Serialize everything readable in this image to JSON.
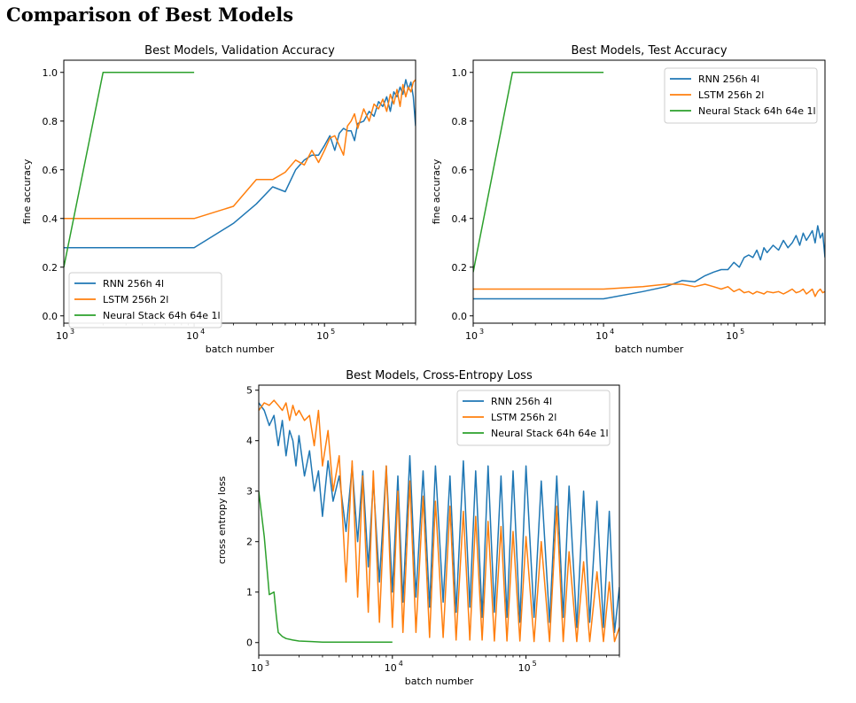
{
  "page": {
    "title": "Comparison of Best Models"
  },
  "colors": {
    "rnn": "#1f77b4",
    "lstm": "#ff7f0e",
    "stack": "#2ca02c"
  },
  "chart_data": [
    {
      "type": "line",
      "title": "Best Models, Validation Accuracy",
      "xlabel": "batch number",
      "ylabel": "fine accuracy",
      "xscale": "log",
      "xlim": [
        1000,
        500000
      ],
      "ylim": [
        -0.03,
        1.05
      ],
      "xticks": [
        1000,
        10000,
        100000
      ],
      "yticks": [
        0.0,
        0.2,
        0.4,
        0.6,
        0.8,
        1.0
      ],
      "yticklabels": [
        "0.0",
        "0.2",
        "0.4",
        "0.6",
        "0.8",
        "1.0"
      ],
      "legend": "lower-left",
      "series": [
        {
          "name": "RNN 256h 4l",
          "color": "#1f77b4",
          "x": [
            1000,
            2000,
            5000,
            10000,
            20000,
            30000,
            40000,
            50000,
            60000,
            70000,
            80000,
            90000,
            100000,
            110000,
            120000,
            130000,
            140000,
            150000,
            160000,
            170000,
            180000,
            200000,
            220000,
            240000,
            260000,
            280000,
            300000,
            320000,
            340000,
            360000,
            380000,
            400000,
            420000,
            440000,
            460000,
            480000,
            500000
          ],
          "y": [
            0.28,
            0.28,
            0.28,
            0.28,
            0.38,
            0.46,
            0.53,
            0.51,
            0.6,
            0.64,
            0.66,
            0.66,
            0.7,
            0.74,
            0.68,
            0.75,
            0.77,
            0.76,
            0.76,
            0.72,
            0.79,
            0.8,
            0.84,
            0.82,
            0.88,
            0.86,
            0.9,
            0.84,
            0.92,
            0.9,
            0.94,
            0.91,
            0.97,
            0.93,
            0.96,
            0.9,
            0.78
          ]
        },
        {
          "name": "LSTM 256h 2l",
          "color": "#ff7f0e",
          "x": [
            1000,
            2000,
            5000,
            10000,
            20000,
            30000,
            40000,
            50000,
            60000,
            70000,
            80000,
            90000,
            100000,
            110000,
            120000,
            130000,
            140000,
            150000,
            160000,
            170000,
            180000,
            200000,
            220000,
            240000,
            260000,
            280000,
            300000,
            320000,
            340000,
            360000,
            380000,
            400000,
            420000,
            440000,
            460000,
            480000,
            500000
          ],
          "y": [
            0.4,
            0.4,
            0.4,
            0.4,
            0.45,
            0.56,
            0.56,
            0.59,
            0.64,
            0.62,
            0.68,
            0.63,
            0.68,
            0.73,
            0.74,
            0.7,
            0.66,
            0.78,
            0.8,
            0.83,
            0.77,
            0.85,
            0.8,
            0.87,
            0.85,
            0.89,
            0.84,
            0.91,
            0.87,
            0.93,
            0.86,
            0.95,
            0.9,
            0.94,
            0.92,
            0.96,
            0.97
          ]
        },
        {
          "name": "Neural Stack 64h 64e 1l",
          "color": "#2ca02c",
          "x": [
            1000,
            2000,
            3000,
            5000,
            8000,
            10000
          ],
          "y": [
            0.2,
            1.0,
            1.0,
            1.0,
            1.0,
            1.0
          ]
        }
      ]
    },
    {
      "type": "line",
      "title": "Best Models, Test Accuracy",
      "xlabel": "batch number",
      "ylabel": "fine accuracy",
      "xscale": "log",
      "xlim": [
        1000,
        500000
      ],
      "ylim": [
        -0.03,
        1.05
      ],
      "xticks": [
        1000,
        10000,
        100000
      ],
      "yticks": [
        0.0,
        0.2,
        0.4,
        0.6,
        0.8,
        1.0
      ],
      "yticklabels": [
        "0.0",
        "0.2",
        "0.4",
        "0.6",
        "0.8",
        "1.0"
      ],
      "legend": "upper-right",
      "series": [
        {
          "name": "RNN 256h 4l",
          "color": "#1f77b4",
          "x": [
            1000,
            2000,
            5000,
            10000,
            20000,
            30000,
            40000,
            50000,
            60000,
            70000,
            80000,
            90000,
            100000,
            110000,
            120000,
            130000,
            140000,
            150000,
            160000,
            170000,
            180000,
            200000,
            220000,
            240000,
            260000,
            280000,
            300000,
            320000,
            340000,
            360000,
            380000,
            400000,
            420000,
            440000,
            460000,
            480000,
            500000
          ],
          "y": [
            0.07,
            0.07,
            0.07,
            0.07,
            0.1,
            0.12,
            0.145,
            0.14,
            0.165,
            0.18,
            0.19,
            0.19,
            0.22,
            0.2,
            0.24,
            0.25,
            0.24,
            0.27,
            0.23,
            0.28,
            0.26,
            0.29,
            0.27,
            0.31,
            0.28,
            0.3,
            0.33,
            0.29,
            0.34,
            0.31,
            0.33,
            0.35,
            0.3,
            0.37,
            0.32,
            0.34,
            0.24
          ]
        },
        {
          "name": "LSTM 256h 2l",
          "color": "#ff7f0e",
          "x": [
            1000,
            2000,
            5000,
            10000,
            20000,
            30000,
            40000,
            50000,
            60000,
            70000,
            80000,
            90000,
            100000,
            110000,
            120000,
            130000,
            140000,
            150000,
            160000,
            170000,
            180000,
            200000,
            220000,
            240000,
            260000,
            280000,
            300000,
            320000,
            340000,
            360000,
            380000,
            400000,
            420000,
            440000,
            460000,
            480000,
            500000
          ],
          "y": [
            0.11,
            0.11,
            0.11,
            0.11,
            0.12,
            0.13,
            0.13,
            0.12,
            0.13,
            0.12,
            0.11,
            0.12,
            0.1,
            0.11,
            0.095,
            0.1,
            0.09,
            0.1,
            0.095,
            0.09,
            0.1,
            0.095,
            0.1,
            0.09,
            0.1,
            0.11,
            0.095,
            0.1,
            0.11,
            0.09,
            0.1,
            0.11,
            0.08,
            0.1,
            0.11,
            0.095,
            0.1
          ]
        },
        {
          "name": "Neural Stack 64h 64e 1l",
          "color": "#2ca02c",
          "x": [
            1000,
            2000,
            3000,
            5000,
            8000,
            10000
          ],
          "y": [
            0.18,
            1.0,
            1.0,
            1.0,
            1.0,
            1.0
          ]
        }
      ]
    },
    {
      "type": "line",
      "title": "Best Models, Cross-Entropy Loss",
      "xlabel": "batch number",
      "ylabel": "cross entropy loss",
      "xscale": "log",
      "xlim": [
        1000,
        500000
      ],
      "ylim": [
        -0.25,
        5.1
      ],
      "xticks": [
        1000,
        10000,
        100000
      ],
      "yticks": [
        0,
        1,
        2,
        3,
        4,
        5
      ],
      "yticklabels": [
        "0",
        "1",
        "2",
        "3",
        "4",
        "5"
      ],
      "legend": "upper-right",
      "series": [
        {
          "name": "RNN 256h 4l",
          "color": "#1f77b4",
          "x": [
            1000,
            1100,
            1200,
            1300,
            1400,
            1500,
            1600,
            1700,
            1800,
            1900,
            2000,
            2200,
            2400,
            2600,
            2800,
            3000,
            3300,
            3600,
            4000,
            4500,
            5000,
            5500,
            6000,
            6600,
            7200,
            8000,
            9000,
            10000,
            11000,
            12000,
            13500,
            15000,
            17000,
            19000,
            21000,
            24000,
            27000,
            30000,
            34000,
            38000,
            42000,
            47000,
            52000,
            58000,
            65000,
            72000,
            80000,
            90000,
            100000,
            115000,
            130000,
            150000,
            170000,
            190000,
            210000,
            240000,
            270000,
            300000,
            340000,
            380000,
            420000,
            460000,
            500000
          ],
          "y": [
            4.75,
            4.6,
            4.3,
            4.5,
            3.9,
            4.4,
            3.7,
            4.2,
            4.0,
            3.5,
            4.1,
            3.3,
            3.8,
            3.0,
            3.4,
            2.5,
            3.6,
            2.8,
            3.3,
            2.2,
            3.5,
            2.0,
            3.4,
            1.5,
            3.2,
            1.2,
            3.5,
            1.0,
            3.3,
            0.8,
            3.7,
            0.9,
            3.4,
            0.7,
            3.5,
            0.8,
            3.3,
            0.6,
            3.6,
            0.7,
            3.4,
            0.5,
            3.5,
            0.6,
            3.3,
            0.5,
            3.4,
            0.4,
            3.5,
            0.5,
            3.2,
            0.4,
            3.3,
            0.5,
            3.1,
            0.3,
            3.0,
            0.4,
            2.8,
            0.3,
            2.6,
            0.2,
            1.1
          ]
        },
        {
          "name": "LSTM 256h 2l",
          "color": "#ff7f0e",
          "x": [
            1000,
            1100,
            1200,
            1300,
            1400,
            1500,
            1600,
            1700,
            1800,
            1900,
            2000,
            2200,
            2400,
            2600,
            2800,
            3000,
            3300,
            3600,
            4000,
            4500,
            5000,
            5500,
            6000,
            6600,
            7200,
            8000,
            9000,
            10000,
            11000,
            12000,
            13500,
            15000,
            17000,
            19000,
            21000,
            24000,
            27000,
            30000,
            34000,
            38000,
            42000,
            47000,
            52000,
            58000,
            65000,
            72000,
            80000,
            90000,
            100000,
            115000,
            130000,
            150000,
            170000,
            190000,
            210000,
            240000,
            270000,
            300000,
            340000,
            380000,
            420000,
            460000,
            500000
          ],
          "y": [
            4.6,
            4.75,
            4.7,
            4.8,
            4.7,
            4.6,
            4.75,
            4.4,
            4.7,
            4.5,
            4.6,
            4.4,
            4.5,
            3.9,
            4.6,
            3.5,
            4.2,
            3.0,
            3.7,
            1.2,
            3.6,
            0.9,
            3.3,
            0.6,
            3.4,
            0.4,
            3.5,
            0.3,
            3.0,
            0.2,
            3.2,
            0.2,
            2.9,
            0.1,
            2.8,
            0.1,
            2.7,
            0.05,
            2.6,
            0.05,
            2.5,
            0.05,
            2.4,
            0.03,
            2.3,
            0.03,
            2.2,
            0.03,
            2.1,
            0.02,
            2.0,
            0.02,
            2.7,
            0.02,
            1.8,
            0.02,
            1.6,
            0.02,
            1.4,
            0.02,
            1.2,
            0.02,
            0.3
          ]
        },
        {
          "name": "Neural Stack 64h 64e 1l",
          "color": "#2ca02c",
          "x": [
            1000,
            1100,
            1200,
            1300,
            1350,
            1400,
            1500,
            1600,
            1800,
            2000,
            2500,
            3000,
            4000,
            5000,
            7000,
            10000
          ],
          "y": [
            3.0,
            2.1,
            0.95,
            1.0,
            0.55,
            0.2,
            0.12,
            0.08,
            0.05,
            0.03,
            0.02,
            0.01,
            0.01,
            0.01,
            0.01,
            0.01
          ]
        }
      ]
    }
  ]
}
